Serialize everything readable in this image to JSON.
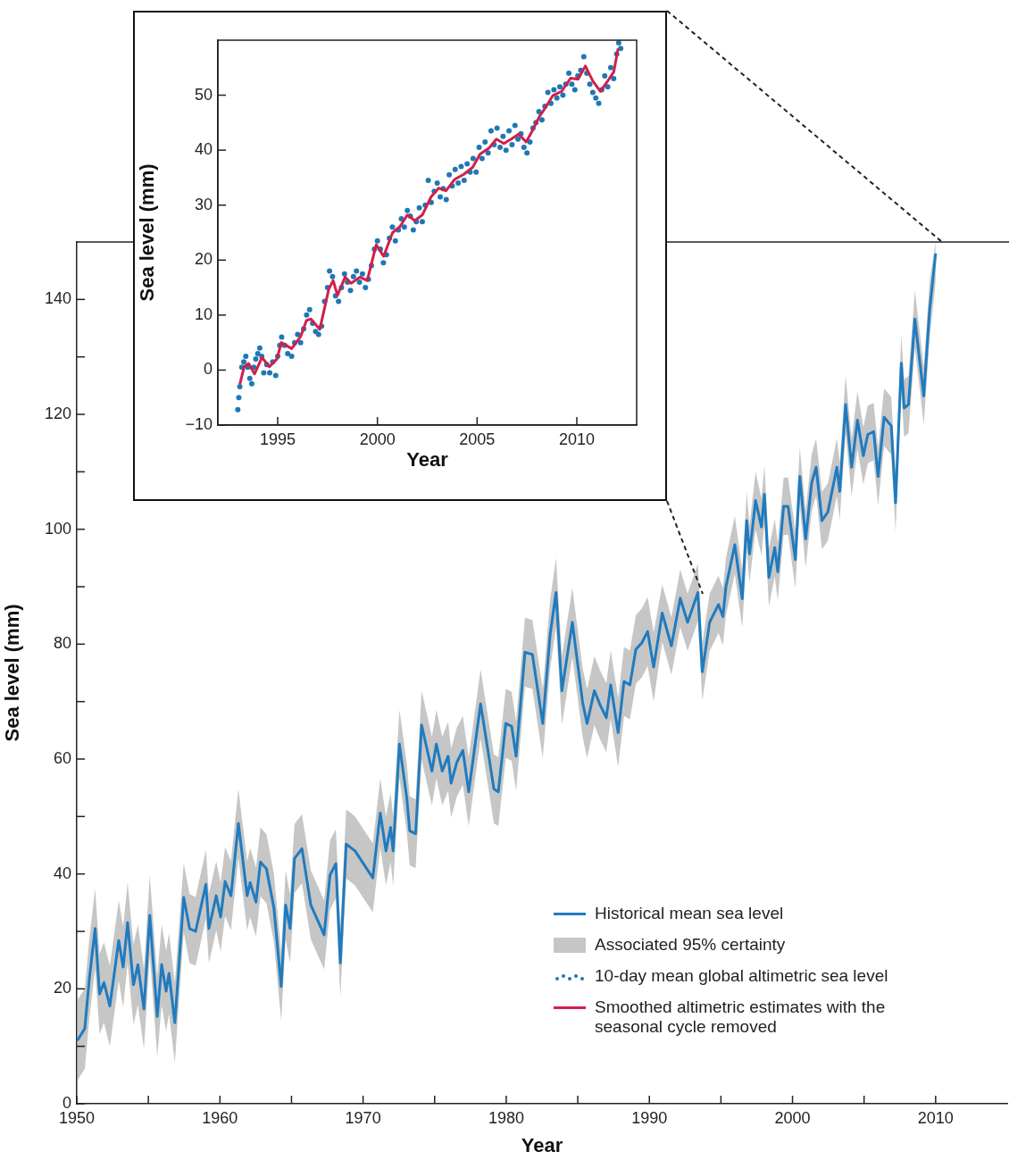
{
  "chart_data": [
    {
      "type": "line",
      "xlabel": "Year",
      "ylabel": "Sea level (mm)",
      "xlim": [
        1950,
        2015
      ],
      "ylim": [
        0,
        150
      ],
      "xticks": [
        1950,
        {
          "value": 1955,
          "label": null
        },
        1960,
        {
          "value": 1965,
          "label": null
        },
        1970,
        {
          "value": 1975,
          "label": null
        },
        1980,
        {
          "value": 1985,
          "label": null
        },
        1990,
        {
          "value": 1995,
          "label": null
        },
        2000,
        {
          "value": 2005,
          "label": null
        },
        2010
      ],
      "yticks": [
        0,
        {
          "value": 10,
          "label": null
        },
        20,
        {
          "value": 30,
          "label": null
        },
        40,
        {
          "value": 50,
          "label": null
        },
        60,
        {
          "value": 70,
          "label": null
        },
        80,
        {
          "value": 90,
          "label": null
        },
        100,
        {
          "value": 110,
          "label": null
        },
        120,
        {
          "value": 130,
          "label": null
        },
        140
      ],
      "legend": "bottom right",
      "series": [
        {
          "name": "Historical mean sea level",
          "color": "#1f7bbf",
          "x": [
            1950.04,
            1950.56,
            1950.87,
            1951.28,
            1951.59,
            1951.9,
            1952.31,
            1952.93,
            1953.24,
            1953.55,
            1953.96,
            1954.27,
            1954.69,
            1955.1,
            1955.62,
            1955.93,
            1956.24,
            1956.44,
            1956.85,
            1957.47,
            1957.88,
            1958.3,
            1959.02,
            1959.23,
            1959.74,
            1960.05,
            1960.36,
            1960.77,
            1961.29,
            1961.9,
            1962.11,
            1962.52,
            1962.83,
            1963.25,
            1963.77,
            1964.28,
            1964.59,
            1964.9,
            1965.21,
            1965.73,
            1966.35,
            1966.87,
            1967.28,
            1967.69,
            1968.1,
            1968.41,
            1968.82,
            1969.44,
            1970.68,
            1971.2,
            1971.6,
            1971.92,
            1972.1,
            1972.54,
            1973.05,
            1973.26,
            1973.67,
            1974.09,
            1974.81,
            1975.12,
            1975.53,
            1975.94,
            1976.15,
            1976.56,
            1976.97,
            1977.38,
            1978.21,
            1978.62,
            1979.14,
            1979.45,
            1979.97,
            1980.38,
            1980.69,
            1981.31,
            1981.83,
            1982.55,
            1983.07,
            1983.48,
            1983.89,
            1984.62,
            1985.34,
            1985.65,
            1986.16,
            1986.58,
            1986.99,
            1987.3,
            1987.82,
            1988.23,
            1988.64,
            1989.06,
            1989.47,
            1989.88,
            1990.3,
            1990.9,
            1991.54,
            1992.16,
            1992.67,
            1993.39,
            1993.7,
            1994.21,
            1994.83,
            1995.14,
            1995.35,
            1995.97,
            1996.49,
            1996.8,
            1997.0,
            1997.42,
            1997.83,
            1998.04,
            1998.35,
            1998.76,
            1998.97,
            1999.38,
            1999.69,
            2000.2,
            2000.51,
            2000.92,
            2001.34,
            2001.65,
            2002.06,
            2002.47,
            2003.1,
            2003.3,
            2003.71,
            2004.13,
            2004.54,
            2004.95,
            2005.26,
            2005.67,
            2005.98,
            2006.4,
            2006.9,
            2007.2,
            2007.6,
            2007.8,
            2008.1,
            2008.55,
            2009.17,
            2009.58,
            2010.0
          ],
          "values": [
            11.0,
            13.1,
            21.6,
            30.5,
            19.1,
            21.1,
            17.0,
            28.4,
            23.8,
            31.5,
            20.7,
            24.2,
            16.5,
            32.8,
            15.2,
            24.2,
            19.6,
            22.7,
            14.1,
            35.9,
            30.5,
            30.0,
            38.2,
            30.5,
            36.2,
            32.5,
            38.7,
            36.2,
            48.8,
            36.2,
            38.5,
            35.1,
            42.1,
            40.9,
            34.1,
            20.4,
            34.6,
            30.5,
            42.7,
            44.4,
            34.6,
            31.7,
            29.4,
            39.8,
            41.8,
            24.5,
            45.2,
            44.0,
            39.3,
            50.6,
            44.0,
            48.1,
            44.0,
            62.6,
            53.3,
            47.5,
            47.0,
            65.9,
            57.9,
            62.6,
            57.9,
            60.5,
            55.8,
            59.5,
            61.5,
            54.3,
            69.6,
            63.1,
            54.8,
            54.3,
            66.2,
            65.7,
            60.5,
            78.6,
            78.2,
            66.2,
            81.7,
            89.0,
            71.9,
            83.8,
            69.8,
            66.2,
            71.9,
            69.3,
            67.2,
            72.9,
            64.6,
            73.5,
            72.9,
            79.1,
            80.2,
            82.2,
            76.0,
            85.4,
            79.7,
            88.0,
            83.8,
            89.0,
            75.2,
            83.8,
            86.9,
            84.8,
            90.0,
            97.3,
            87.9,
            101.5,
            95.7,
            105.0,
            100.4,
            106.1,
            91.6,
            96.8,
            92.6,
            104.0,
            104.0,
            94.7,
            109.2,
            98.3,
            108.1,
            110.8,
            101.5,
            103.0,
            110.8,
            106.6,
            121.7,
            110.8,
            119.0,
            112.8,
            116.5,
            117.0,
            109.2,
            119.5,
            118.0,
            104.6,
            128.9,
            121.1,
            121.7,
            136.6,
            123.2,
            138.2,
            148.0
          ],
          "lower": [
            4.0,
            6.1,
            14.6,
            23.5,
            12.1,
            14.1,
            10.0,
            21.4,
            16.8,
            24.5,
            13.7,
            17.2,
            9.5,
            25.8,
            8.2,
            17.2,
            12.6,
            15.7,
            7.1,
            29.9,
            24.5,
            24.0,
            32.2,
            24.5,
            30.2,
            26.5,
            32.7,
            30.2,
            42.8,
            30.2,
            32.5,
            29.1,
            36.1,
            34.9,
            28.1,
            14.4,
            28.6,
            24.5,
            36.7,
            38.4,
            28.6,
            25.7,
            23.4,
            33.8,
            35.8,
            18.5,
            39.2,
            38.0,
            33.3,
            44.6,
            38.0,
            42.1,
            38.0,
            56.6,
            47.3,
            41.5,
            41.0,
            59.9,
            51.9,
            56.6,
            51.9,
            54.5,
            49.8,
            53.5,
            55.5,
            48.3,
            63.6,
            57.1,
            48.8,
            48.3,
            60.2,
            59.7,
            54.5,
            72.6,
            72.2,
            60.2,
            75.7,
            83.0,
            65.9,
            77.8,
            63.8,
            60.2,
            65.9,
            63.3,
            61.2,
            66.9,
            58.6,
            67.5,
            66.9,
            73.1,
            74.2,
            76.2,
            70.0,
            80.4,
            74.7,
            83.0,
            78.8,
            84.0,
            70.2,
            78.8,
            81.9,
            79.8,
            85.0,
            92.3,
            82.9,
            96.5,
            90.7,
            100.0,
            95.4,
            101.1,
            86.6,
            91.8,
            87.6,
            99.0,
            99.0,
            89.7,
            104.2,
            93.3,
            103.1,
            105.8,
            96.5,
            98.0,
            105.8,
            101.6,
            116.7,
            105.8,
            114.0,
            107.8,
            111.5,
            112.0,
            104.2,
            114.5,
            113.0,
            99.6,
            123.9,
            116.1,
            116.7,
            131.6,
            118.2,
            133.2,
            143.0
          ],
          "upper": [
            18.0,
            20.1,
            28.6,
            37.5,
            26.1,
            28.1,
            24.0,
            35.4,
            30.8,
            38.5,
            27.7,
            31.2,
            23.5,
            39.8,
            22.2,
            31.2,
            26.6,
            29.7,
            21.1,
            41.9,
            36.5,
            36.0,
            44.2,
            36.5,
            42.2,
            38.5,
            44.7,
            42.2,
            54.8,
            42.2,
            44.5,
            41.1,
            48.1,
            46.9,
            40.1,
            26.4,
            40.6,
            36.5,
            48.7,
            50.4,
            40.6,
            37.7,
            35.4,
            45.8,
            47.8,
            30.5,
            51.2,
            50.0,
            45.3,
            56.6,
            50.0,
            54.1,
            50.0,
            68.6,
            59.3,
            53.5,
            53.0,
            71.9,
            63.9,
            68.6,
            63.9,
            66.5,
            61.8,
            65.5,
            67.5,
            60.3,
            75.6,
            69.1,
            60.8,
            60.3,
            72.2,
            71.7,
            66.5,
            84.6,
            84.2,
            72.2,
            87.7,
            95.0,
            77.9,
            89.8,
            75.8,
            72.2,
            77.9,
            75.3,
            73.2,
            78.9,
            70.6,
            79.5,
            78.9,
            85.1,
            86.2,
            88.2,
            82.0,
            90.4,
            84.7,
            93.0,
            88.8,
            94.0,
            80.2,
            88.8,
            91.9,
            89.8,
            95.0,
            102.3,
            92.9,
            106.5,
            100.7,
            110.0,
            105.4,
            111.1,
            96.6,
            101.8,
            97.6,
            109.0,
            109.0,
            99.7,
            114.2,
            103.3,
            113.1,
            115.8,
            106.5,
            108.0,
            115.8,
            111.6,
            126.7,
            115.8,
            124.0,
            117.8,
            121.5,
            122.0,
            114.2,
            124.5,
            123.0,
            109.6,
            133.9,
            126.1,
            126.7,
            141.6,
            128.2,
            143.2,
            150.0
          ]
        }
      ],
      "annotations": [
        "Associated 95% certainty"
      ]
    },
    {
      "type": "line",
      "xlabel": "Year",
      "ylabel": "Sea level (mm)",
      "xlim": [
        1992,
        2013
      ],
      "ylim": [
        -10,
        60
      ],
      "xticks": [
        1995,
        2000,
        2005,
        2010
      ],
      "yticks": [
        {
          "value": -10,
          "label": "−10"
        },
        0,
        10,
        20,
        30,
        40,
        50
      ],
      "legend": "bottom right",
      "series": [
        {
          "name": "10-day mean global altimetric sea level",
          "type": "scatter",
          "color": "#1f78b4",
          "x": [
            1993.0,
            1993.05,
            1993.1,
            1993.2,
            1993.3,
            1993.4,
            1993.5,
            1993.6,
            1993.7,
            1993.8,
            1993.9,
            1994.0,
            1994.1,
            1994.2,
            1994.3,
            1994.45,
            1994.6,
            1994.75,
            1994.9,
            1995.0,
            1995.1,
            1995.2,
            1995.35,
            1995.5,
            1995.7,
            1995.85,
            1996.0,
            1996.15,
            1996.3,
            1996.45,
            1996.6,
            1996.75,
            1996.9,
            1997.05,
            1997.2,
            1997.35,
            1997.5,
            1997.6,
            1997.75,
            1997.9,
            1998.05,
            1998.2,
            1998.35,
            1998.5,
            1998.65,
            1998.8,
            1998.95,
            1999.1,
            1999.25,
            1999.4,
            1999.55,
            1999.7,
            1999.85,
            2000.0,
            2000.15,
            2000.3,
            2000.45,
            2000.6,
            2000.75,
            2000.9,
            2001.05,
            2001.2,
            2001.35,
            2001.5,
            2001.65,
            2001.8,
            2001.95,
            2002.1,
            2002.25,
            2002.4,
            2002.55,
            2002.7,
            2002.85,
            2003.0,
            2003.15,
            2003.3,
            2003.45,
            2003.6,
            2003.75,
            2003.9,
            2004.05,
            2004.2,
            2004.35,
            2004.5,
            2004.65,
            2004.8,
            2004.95,
            2005.1,
            2005.25,
            2005.4,
            2005.55,
            2005.7,
            2005.85,
            2006.0,
            2006.15,
            2006.3,
            2006.45,
            2006.6,
            2006.75,
            2006.9,
            2007.05,
            2007.2,
            2007.35,
            2007.5,
            2007.65,
            2007.8,
            2007.95,
            2008.1,
            2008.25,
            2008.4,
            2008.55,
            2008.7,
            2008.85,
            2009.0,
            2009.15,
            2009.3,
            2009.45,
            2009.6,
            2009.75,
            2009.9,
            2010.05,
            2010.2,
            2010.35,
            2010.5,
            2010.65,
            2010.8,
            2010.95,
            2011.1,
            2011.25,
            2011.4,
            2011.55,
            2011.7,
            2011.85,
            2012.0,
            2012.1,
            2012.2
          ],
          "values": [
            -7.2,
            -5,
            -3,
            0.5,
            1.5,
            2.5,
            0.5,
            -1.5,
            -2.5,
            0.5,
            2,
            3,
            4,
            2.5,
            -0.5,
            1,
            -0.5,
            1.5,
            -1,
            2.5,
            4.5,
            6,
            4.5,
            3,
            2.5,
            5,
            6.5,
            5,
            7.5,
            10,
            11,
            8.5,
            7,
            6.5,
            8,
            12.5,
            15,
            18,
            17,
            13.5,
            12.5,
            15,
            17.5,
            16,
            14.5,
            17,
            18,
            16,
            17.5,
            15,
            16.5,
            19,
            22,
            23.5,
            22,
            19.5,
            21,
            24,
            26,
            23.5,
            25.5,
            27.5,
            26,
            29,
            28,
            25.5,
            27,
            29.5,
            27,
            30,
            34.5,
            30.5,
            32.5,
            34,
            31.5,
            33,
            31,
            35.5,
            33.5,
            36.5,
            34,
            37,
            34.5,
            37.5,
            36,
            38.5,
            36,
            40.5,
            38.5,
            41.5,
            39.5,
            43.5,
            41,
            44,
            40.5,
            42.5,
            40,
            43.5,
            41,
            44.5,
            42,
            43,
            40.5,
            39.5,
            41.5,
            44,
            45,
            47,
            45.5,
            48,
            50.5,
            48.5,
            51,
            49.5,
            51.5,
            50,
            52,
            54,
            52,
            51,
            53.5,
            54.5,
            57,
            54,
            52,
            50.5,
            49.5,
            48.5,
            51,
            53.5,
            51.5,
            55,
            53,
            57.5,
            59.5,
            58.5
          ]
        },
        {
          "name": "Smoothed altimetric estimates with the seasonal cycle removed",
          "color": "#d11f4a",
          "x": [
            1993.1,
            1993.32,
            1993.54,
            1993.84,
            1994.21,
            1994.58,
            1994.96,
            1995.18,
            1995.7,
            1996.15,
            1996.44,
            1996.67,
            1997.11,
            1997.56,
            1997.78,
            1998.0,
            1998.38,
            1998.68,
            1999.12,
            1999.49,
            1999.94,
            2000.31,
            2000.76,
            2001.13,
            2001.5,
            2001.88,
            2002.25,
            2002.69,
            2003.07,
            2003.44,
            2003.88,
            2004.33,
            2004.78,
            2005.15,
            2005.6,
            2005.97,
            2006.34,
            2006.71,
            2007.08,
            2007.46,
            2007.75,
            2008.12,
            2008.42,
            2008.79,
            2009.24,
            2009.69,
            2010.06,
            2010.43,
            2010.8,
            2011.18,
            2011.55,
            2011.85,
            2012.07
          ],
          "values": [
            -2.6,
            0.6,
            1.2,
            -0.7,
            2.3,
            0.6,
            2.0,
            5.0,
            3.9,
            6.1,
            9.0,
            9.3,
            7.4,
            14.7,
            16.3,
            13.6,
            16.9,
            15.8,
            16.9,
            16.3,
            22.8,
            20.7,
            25.0,
            26.1,
            28.2,
            27.2,
            28.2,
            31.5,
            33.1,
            32.6,
            34.7,
            35.6,
            36.9,
            39.3,
            40.4,
            42.0,
            41.2,
            42.0,
            42.9,
            41.5,
            43.4,
            46.1,
            47.7,
            49.9,
            50.7,
            53.1,
            52.9,
            55.3,
            52.6,
            50.7,
            52.6,
            54.2,
            58.5
          ]
        }
      ]
    }
  ]
}
